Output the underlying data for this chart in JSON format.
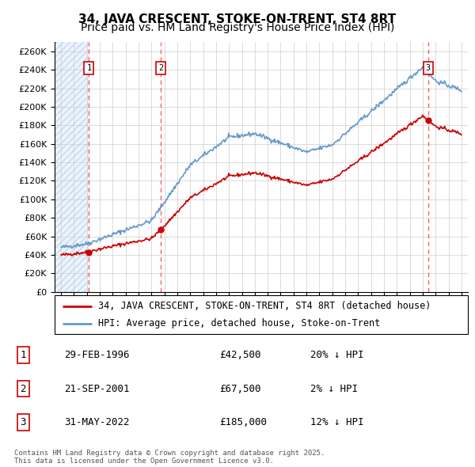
{
  "title": "34, JAVA CRESCENT, STOKE-ON-TRENT, ST4 8RT",
  "subtitle": "Price paid vs. HM Land Registry's House Price Index (HPI)",
  "xlim_start": 1993.5,
  "xlim_end": 2025.5,
  "ylim": [
    0,
    270000
  ],
  "yticks": [
    0,
    20000,
    40000,
    60000,
    80000,
    100000,
    120000,
    140000,
    160000,
    180000,
    200000,
    220000,
    240000,
    260000
  ],
  "ytick_labels": [
    "£0",
    "£20K",
    "£40K",
    "£60K",
    "£80K",
    "£100K",
    "£120K",
    "£140K",
    "£160K",
    "£180K",
    "£200K",
    "£220K",
    "£240K",
    "£260K"
  ],
  "sale_dates": [
    1996.16,
    2001.72,
    2022.41
  ],
  "sale_prices": [
    42500,
    67500,
    185000
  ],
  "sale_labels": [
    "1",
    "2",
    "3"
  ],
  "hpi_color": "#6699cc",
  "price_color": "#cc0000",
  "dashed_color": "#ff4444",
  "legend_label_red": "34, JAVA CRESCENT, STOKE-ON-TRENT, ST4 8RT (detached house)",
  "legend_label_blue": "HPI: Average price, detached house, Stoke-on-Trent",
  "table_entries": [
    {
      "num": "1",
      "date": "29-FEB-1996",
      "price": "£42,500",
      "hpi": "20% ↓ HPI"
    },
    {
      "num": "2",
      "date": "21-SEP-2001",
      "price": "£67,500",
      "hpi": "2% ↓ HPI"
    },
    {
      "num": "3",
      "date": "31-MAY-2022",
      "price": "£185,000",
      "hpi": "12% ↓ HPI"
    }
  ],
  "footnote": "Contains HM Land Registry data © Crown copyright and database right 2025.\nThis data is licensed under the Open Government Licence v3.0.",
  "title_fontsize": 11,
  "subtitle_fontsize": 10,
  "tick_fontsize": 8.0,
  "legend_fontsize": 8.5,
  "table_fontsize": 9
}
